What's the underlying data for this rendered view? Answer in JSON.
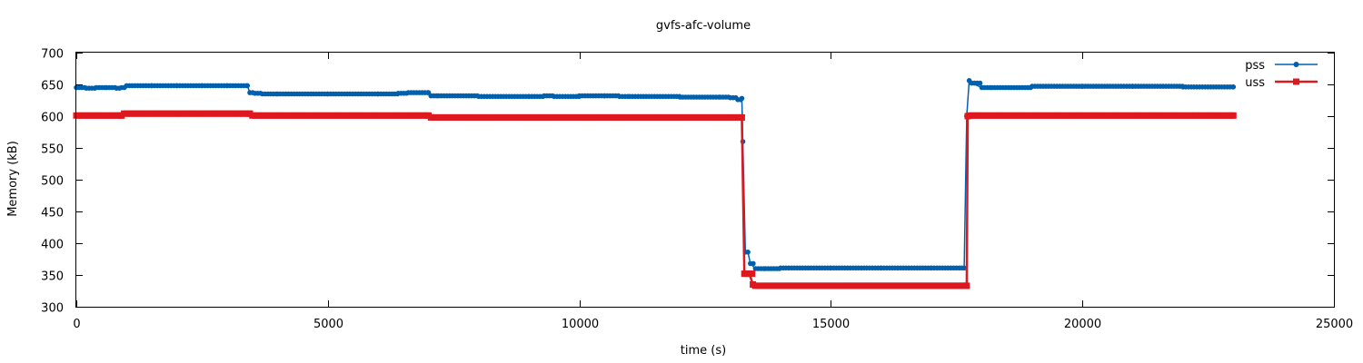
{
  "chart_data": {
    "type": "line",
    "title": "gvfs-afc-volume",
    "xlabel": "time (s)",
    "ylabel": "Memory (kB)",
    "xlim": [
      0,
      25000
    ],
    "ylim": [
      300,
      700
    ],
    "xticks": [
      0,
      5000,
      10000,
      15000,
      20000,
      25000
    ],
    "yticks": [
      300,
      350,
      400,
      450,
      500,
      550,
      600,
      650,
      700
    ],
    "grid": false,
    "legend_position": "top-right",
    "series": [
      {
        "name": "pss",
        "color": "#0060ad",
        "marker": "circle",
        "x": [
          0,
          200,
          400,
          600,
          800,
          900,
          1000,
          1500,
          2000,
          2500,
          3000,
          3400,
          3450,
          3550,
          3700,
          4000,
          5000,
          6000,
          6400,
          6600,
          7000,
          7050,
          7200,
          8000,
          9000,
          9300,
          9500,
          10000,
          10500,
          10800,
          11000,
          12000,
          12800,
          13000,
          13150,
          13230,
          13250,
          13300,
          13350,
          13400,
          13500,
          13700,
          14000,
          15000,
          16000,
          17000,
          17600,
          17650,
          17700,
          17750,
          17800,
          18000,
          18200,
          19000,
          20000,
          21000,
          22000,
          23000
        ],
        "y": [
          645,
          644,
          645,
          645,
          644,
          645,
          648,
          648,
          648,
          648,
          648,
          648,
          637,
          636,
          635,
          635,
          635,
          635,
          636,
          637,
          637,
          632,
          632,
          631,
          631,
          632,
          631,
          632,
          632,
          631,
          631,
          630,
          630,
          629,
          626,
          628,
          560,
          386,
          386,
          368,
          360,
          360,
          361,
          361,
          361,
          361,
          361,
          361,
          600,
          656,
          652,
          645,
          645,
          647,
          647,
          647,
          646,
          646
        ]
      },
      {
        "name": "uss",
        "color": "#dd181f",
        "marker": "square",
        "x": [
          0,
          900,
          950,
          3450,
          3500,
          7000,
          7050,
          13200,
          13230,
          13280,
          13380,
          13450,
          13500,
          17700,
          17720,
          17750,
          23000
        ],
        "y": [
          601,
          601,
          604,
          604,
          601,
          601,
          598,
          598,
          598,
          352,
          352,
          335,
          333,
          333,
          600,
          601,
          601
        ]
      }
    ]
  }
}
